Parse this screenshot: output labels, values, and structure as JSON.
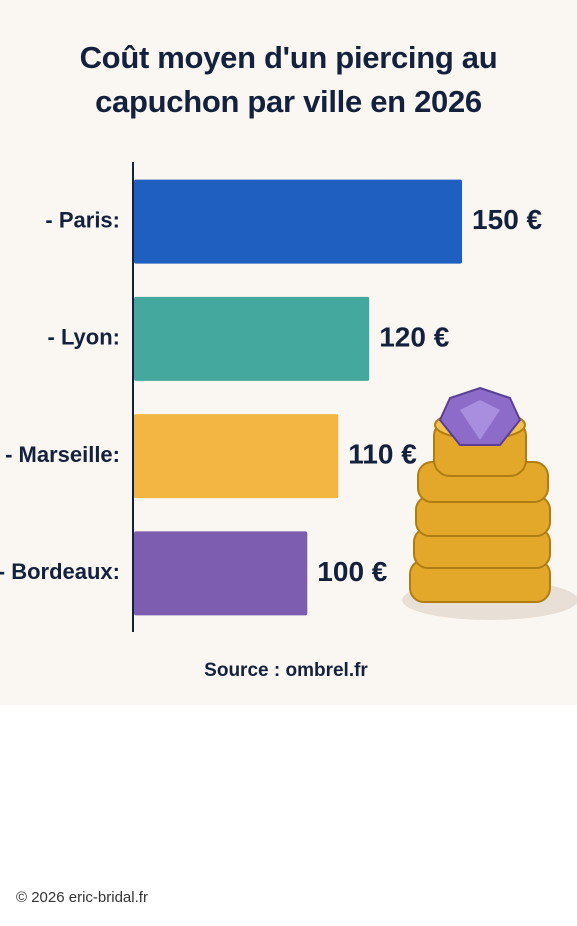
{
  "chart_data": {
    "type": "bar",
    "orientation": "horizontal",
    "title": "Coût moyen d'un piercing au capuchon par ville en 2026",
    "categories": [
      "- Paris:",
      "- Lyon:",
      "- Marseille:",
      "- Bordeaux:"
    ],
    "values": [
      150,
      120,
      110,
      100
    ],
    "value_labels": [
      "150 €",
      "120 €",
      "110 €",
      "100 €"
    ],
    "colors": [
      "#1f5fbf",
      "#45a89f",
      "#f4b643",
      "#7d5db0"
    ],
    "xlim": [
      44,
      160
    ],
    "source": "Source : ombrel.fr"
  },
  "footer": "© 2026 eric-bridal.fr"
}
